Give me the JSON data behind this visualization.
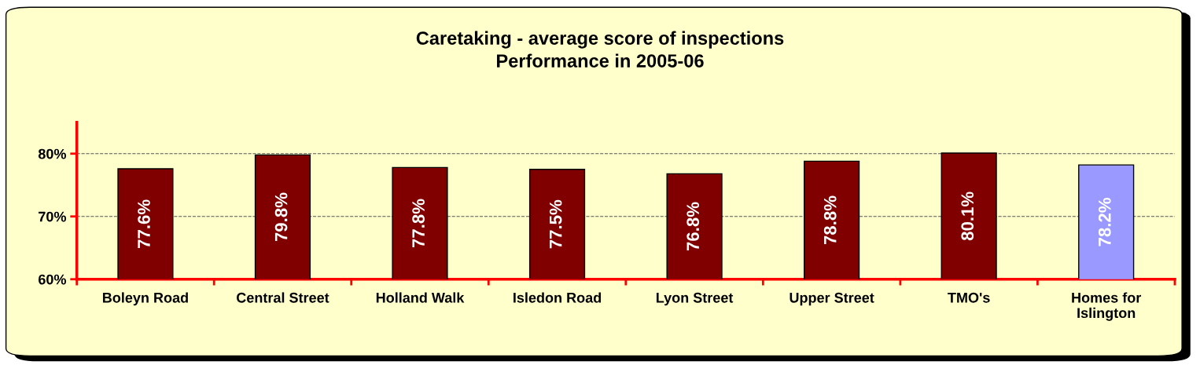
{
  "chart_data": {
    "type": "bar",
    "title": "Caretaking - average score of inspections\nPerformance in 2005-06",
    "categories": [
      "Boleyn Road",
      "Central Street",
      "Holland Walk",
      "Isledon Road",
      "Lyon Street",
      "Upper Street",
      "TMO's",
      "Homes for\nIslington"
    ],
    "values": [
      77.6,
      79.8,
      77.8,
      77.5,
      76.8,
      78.8,
      80.1,
      78.2
    ],
    "value_labels": [
      "77.6%",
      "79.8%",
      "77.8%",
      "77.5%",
      "76.8%",
      "78.8%",
      "80.1%",
      "78.2%"
    ],
    "colors": [
      "#800000",
      "#800000",
      "#800000",
      "#800000",
      "#800000",
      "#800000",
      "#800000",
      "#9999ff"
    ],
    "ylim": [
      60,
      85
    ],
    "yticks": [
      {
        "value": 60,
        "label": "60%"
      },
      {
        "value": 70,
        "label": "70%"
      },
      {
        "value": 80,
        "label": "80%"
      }
    ],
    "grid": "y"
  }
}
